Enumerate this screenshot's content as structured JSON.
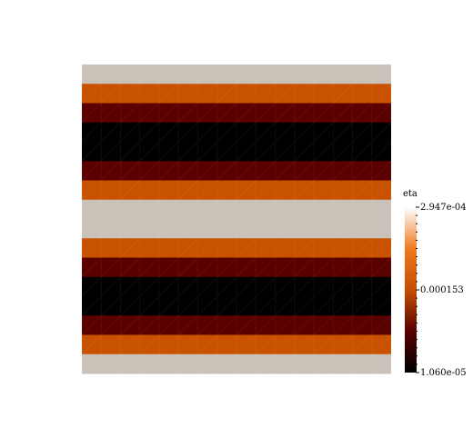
{
  "chart_data": {
    "type": "heatmap",
    "title": "",
    "colorbar": {
      "title": "eta",
      "max_label": "2.947e-04",
      "mid_label": "0.000153",
      "min_label": "1.060e-05",
      "min": 1.06e-05,
      "max": 0.0002947,
      "colors": [
        "#000000",
        "#5a0000",
        "#c44e00",
        "#f07a1e",
        "#ffffff"
      ]
    },
    "bands": [
      {
        "color": "#c8c2b8",
        "weight": 1
      },
      {
        "color": "#c95200",
        "weight": 1
      },
      {
        "color": "#5a0000",
        "weight": 1
      },
      {
        "color": "#000000",
        "weight": 2
      },
      {
        "color": "#5a0000",
        "weight": 1
      },
      {
        "color": "#c95200",
        "weight": 1
      },
      {
        "color": "#c8c2b8",
        "weight": 2
      },
      {
        "color": "#c95200",
        "weight": 1
      },
      {
        "color": "#5a0000",
        "weight": 1
      },
      {
        "color": "#000000",
        "weight": 2
      },
      {
        "color": "#5a0000",
        "weight": 1
      },
      {
        "color": "#c95200",
        "weight": 1
      },
      {
        "color": "#c8c2b8",
        "weight": 1
      }
    ],
    "grid_columns": 16
  }
}
